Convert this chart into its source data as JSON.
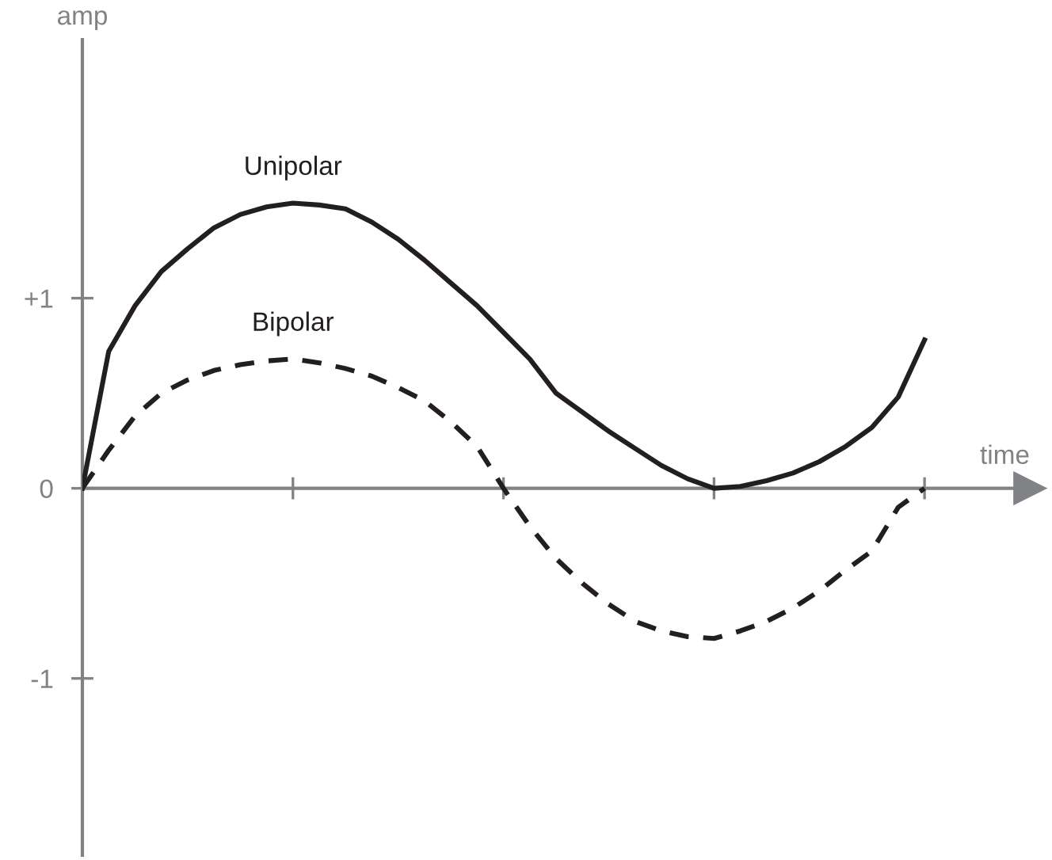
{
  "chart_data": {
    "type": "line",
    "xlabel": "time",
    "ylabel": "amp",
    "categories": [
      null,
      null,
      null,
      null,
      null,
      null,
      null,
      null,
      null,
      null,
      null,
      null,
      null,
      null,
      null,
      null,
      null,
      null,
      null,
      null,
      null,
      null,
      null,
      null,
      null,
      null,
      null,
      null,
      null,
      null,
      null,
      null,
      null
    ],
    "ylim": [
      -1.93,
      2.36
    ],
    "yticks": [
      {
        "value": 1,
        "label": "+1"
      },
      {
        "value": 0,
        "label": "0"
      },
      {
        "value": -1,
        "label": "-1"
      }
    ],
    "tick_labels": "y",
    "marker": "none",
    "series": [
      {
        "name": "Unipolar",
        "color": "#231f20",
        "line_style": "solid",
        "values": [
          0,
          0.72,
          0.96,
          1.14,
          1.26,
          1.37,
          1.44,
          1.48,
          1.5,
          1.49,
          1.47,
          1.4,
          1.31,
          1.2,
          1.08,
          0.96,
          0.82,
          0.68,
          0.5,
          0.4,
          0.3,
          0.21,
          0.12,
          0.05,
          0,
          0.01,
          0.04,
          0.08,
          0.14,
          0.22,
          0.32,
          0.48,
          0.78
        ]
      },
      {
        "name": "Bipolar",
        "color": "#231f20",
        "line_style": "dashed",
        "values": [
          0,
          0.2,
          0.38,
          0.5,
          0.57,
          0.62,
          0.65,
          0.67,
          0.68,
          0.66,
          0.63,
          0.59,
          0.53,
          0.46,
          0.35,
          0.22,
          0,
          -0.2,
          -0.37,
          -0.5,
          -0.61,
          -0.7,
          -0.75,
          -0.78,
          -0.79,
          -0.75,
          -0.7,
          -0.63,
          -0.54,
          -0.43,
          -0.33,
          -0.1,
          0
        ]
      }
    ]
  }
}
